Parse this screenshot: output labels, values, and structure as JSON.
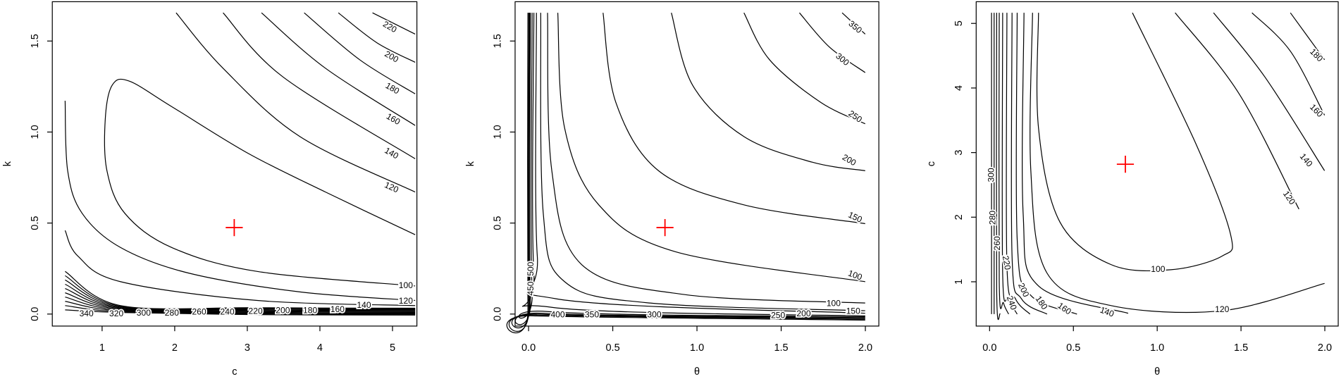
{
  "chart_data": [
    {
      "type": "contour",
      "xlabel": "c",
      "ylabel": "k",
      "xlim": [
        0.314,
        5.336
      ],
      "ylim": [
        -0.066,
        1.716
      ],
      "xticks": [
        1,
        2,
        3,
        4,
        5
      ],
      "yticks": [
        {
          "value": 0,
          "label": "0.0"
        },
        {
          "value": 0.5,
          "label": "0.5"
        },
        {
          "value": 1,
          "label": "1.0"
        },
        {
          "value": 1.5,
          "label": "1.5"
        }
      ],
      "point": {
        "x": 2.82,
        "y": 0.475,
        "color": "#ff0000"
      },
      "contours": [
        {
          "level": 100
        },
        {
          "level": 120
        },
        {
          "level": 140
        },
        {
          "level": 160
        },
        {
          "level": 180
        },
        {
          "level": 200
        },
        {
          "level": 220
        },
        {
          "level": 120
        },
        {
          "level": 140
        },
        {
          "level": 160
        },
        {
          "level": 180
        },
        {
          "level": 200
        },
        {
          "level": 220
        },
        {
          "level": 240
        },
        {
          "level": 260
        },
        {
          "level": 280
        },
        {
          "level": 300
        },
        {
          "level": 320
        },
        {
          "level": 340
        }
      ]
    },
    {
      "type": "contour",
      "xlabel": "θ",
      "ylabel": "k",
      "xlim": [
        -0.08,
        2.08
      ],
      "ylim": [
        -0.066,
        1.716
      ],
      "xticks": [
        {
          "value": 0,
          "label": "0.0"
        },
        {
          "value": 0.5,
          "label": "0.5"
        },
        {
          "value": 1,
          "label": "1.0"
        },
        {
          "value": 1.5,
          "label": "1.5"
        },
        {
          "value": 2,
          "label": "2.0"
        }
      ],
      "yticks": [
        {
          "value": 0,
          "label": "0.0"
        },
        {
          "value": 0.5,
          "label": "0.5"
        },
        {
          "value": 1,
          "label": "1.0"
        },
        {
          "value": 1.5,
          "label": "1.5"
        }
      ],
      "point": {
        "x": 0.81,
        "y": 0.475,
        "color": "#ff0000"
      },
      "contours": [
        {
          "level": 100
        },
        {
          "level": 150
        },
        {
          "level": 200
        },
        {
          "level": 250
        },
        {
          "level": 300
        },
        {
          "level": 350
        },
        {
          "level": 100
        },
        {
          "level": 150
        },
        {
          "level": 200
        },
        {
          "level": 250
        },
        {
          "level": 300
        },
        {
          "level": 350
        },
        {
          "level": 400
        },
        {
          "level": 450
        },
        {
          "level": 500
        }
      ]
    },
    {
      "type": "contour",
      "xlabel": "θ",
      "ylabel": "c",
      "xlim": [
        -0.08,
        2.08
      ],
      "ylim": [
        0.314,
        5.336
      ],
      "xticks": [
        {
          "value": 0,
          "label": "0.0"
        },
        {
          "value": 0.5,
          "label": "0.5"
        },
        {
          "value": 1,
          "label": "1.0"
        },
        {
          "value": 1.5,
          "label": "1.5"
        },
        {
          "value": 2,
          "label": "2.0"
        }
      ],
      "yticks": [
        1,
        2,
        3,
        4,
        5
      ],
      "point": {
        "x": 0.81,
        "y": 2.82,
        "color": "#ff0000"
      },
      "contours": [
        {
          "level": 100
        },
        {
          "level": 120
        },
        {
          "level": 120
        },
        {
          "level": 140
        },
        {
          "level": 140
        },
        {
          "level": 160
        },
        {
          "level": 160
        },
        {
          "level": 180
        },
        {
          "level": 180
        },
        {
          "level": 200
        },
        {
          "level": 220
        },
        {
          "level": 240
        },
        {
          "level": 260
        },
        {
          "level": 280
        },
        {
          "level": 300
        }
      ]
    }
  ]
}
